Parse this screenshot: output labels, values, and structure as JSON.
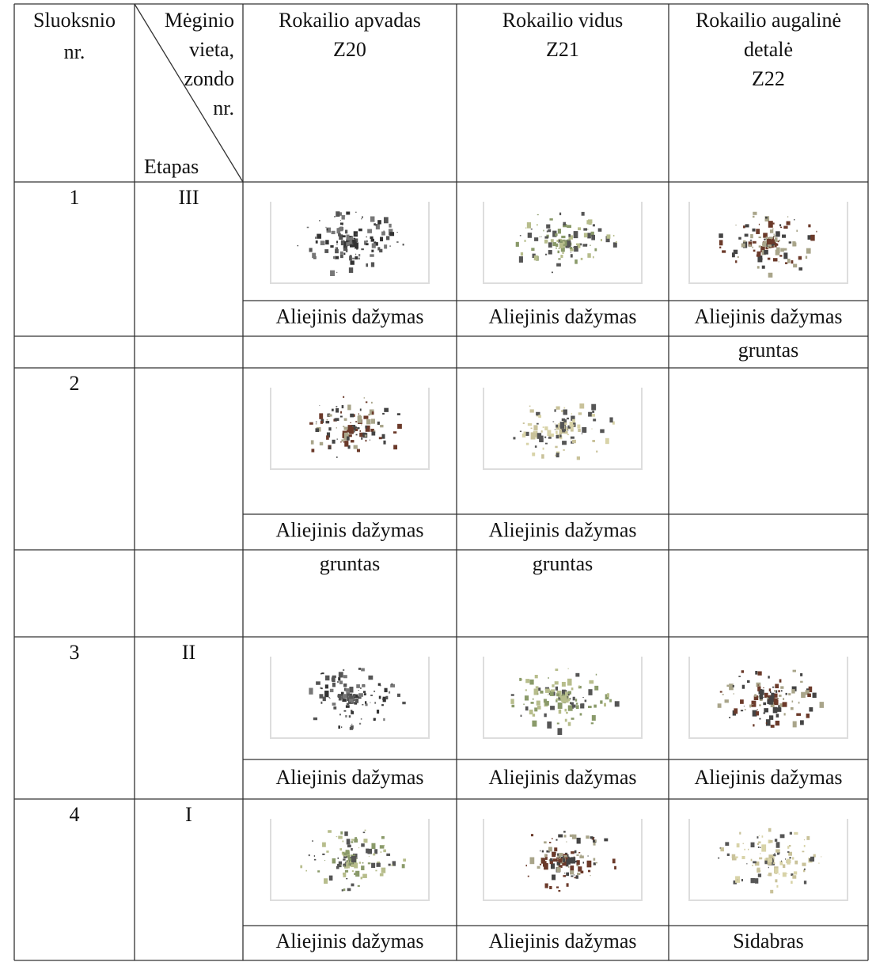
{
  "header": {
    "layer": [
      "Sluoksnio",
      "nr."
    ],
    "place": [
      "Mėginio",
      "vieta,",
      "zondo",
      "nr."
    ],
    "stage": "Etapas",
    "samples": [
      [
        "Rokailio apvadas",
        "Z20"
      ],
      [
        "Rokailio vidus",
        "Z21"
      ],
      [
        "Rokailio augalinė",
        "detalė",
        "Z22"
      ]
    ]
  },
  "rows": [
    {
      "layer": "1",
      "stage": "III",
      "cells": [
        "Aliejinis dažymas",
        "Aliejinis dažymas",
        "Aliejinis dažymas"
      ]
    },
    {
      "cells": [
        null,
        null,
        "gruntas"
      ]
    },
    {
      "layer": "2",
      "cells": [
        "Aliejinis dažymas",
        "Aliejinis dažymas",
        null
      ]
    },
    {
      "cells": [
        "gruntas",
        "gruntas",
        null
      ]
    },
    {
      "layer": "3",
      "stage": "II",
      "cells": [
        "Aliejinis dažymas",
        "Aliejinis dažymas",
        "Aliejinis dažymas"
      ]
    },
    {
      "layer": "4",
      "stage": "I",
      "cells": [
        "Aliejinis dažymas",
        "Aliejinis dažymas",
        "Sidabras"
      ]
    }
  ]
}
